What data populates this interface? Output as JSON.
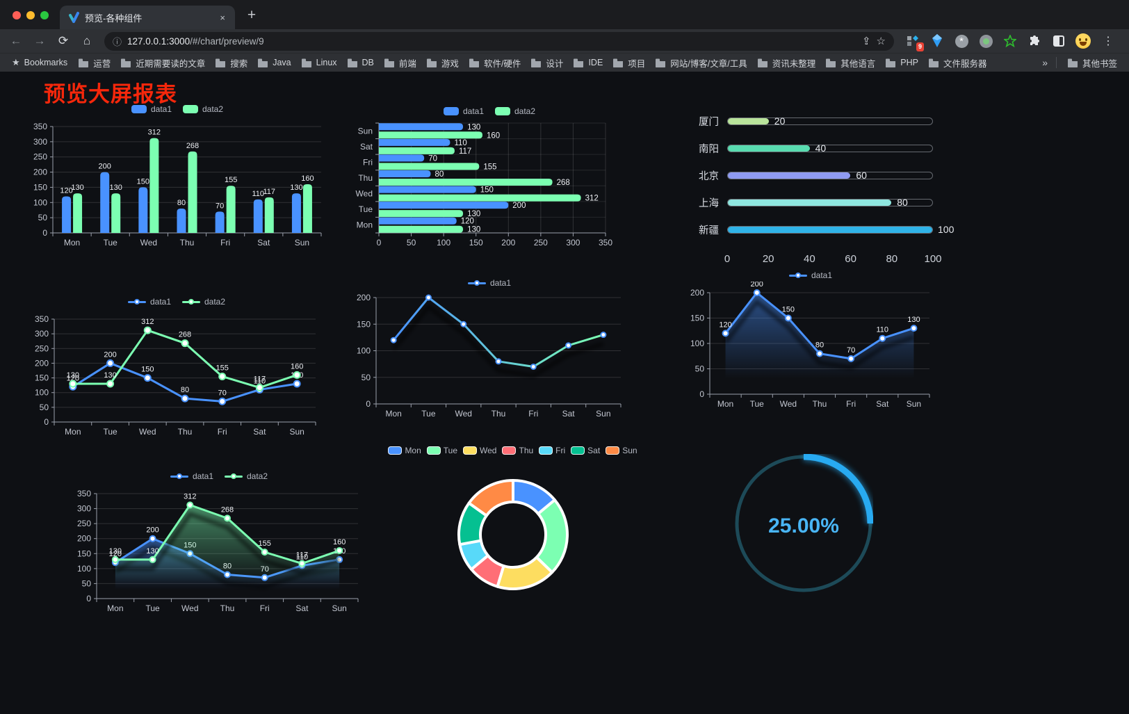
{
  "browser": {
    "tab_title": "预览-各种组件",
    "close_glyph": "×",
    "new_tab_glyph": "+",
    "nav": {
      "back": "←",
      "forward": "→",
      "reload": "⟳",
      "home": "⌂"
    },
    "url": {
      "info_glyph": "ⓘ",
      "host": "127.0.0.1:3000",
      "path": "/#/chart/preview/9"
    },
    "share_glyph": "⇪",
    "star_glyph": "☆",
    "extension_badge": "9",
    "menu_glyph": "⋮",
    "bookmarks": {
      "root_label": "Bookmarks",
      "folders": [
        "运营",
        "近期需要读的文章",
        "搜索",
        "Java",
        "Linux",
        "DB",
        "前端",
        "游戏",
        "软件/硬件",
        "设计",
        "IDE",
        "项目",
        "网站/博客/文章/工具",
        "资讯未整理",
        "其他语言",
        "PHP",
        "文件服务器"
      ],
      "overflow_glyph": "»",
      "other_label": "其他书签"
    }
  },
  "page": {
    "title": "预览大屏报表"
  },
  "chart_data": [
    {
      "id": "bar-vertical",
      "type": "bar",
      "categories": [
        "Mon",
        "Tue",
        "Wed",
        "Thu",
        "Fri",
        "Sat",
        "Sun"
      ],
      "series": [
        {
          "name": "data1",
          "color": "#4992ff",
          "values": [
            120,
            200,
            150,
            80,
            70,
            110,
            130
          ]
        },
        {
          "name": "data2",
          "color": "#7cffb2",
          "values": [
            130,
            130,
            312,
            268,
            155,
            117,
            160
          ]
        }
      ],
      "ylim": [
        0,
        350
      ],
      "ytick_step": 50,
      "legend_position": "top",
      "grid": true,
      "labels": true
    },
    {
      "id": "bar-horizontal",
      "type": "bar-horizontal",
      "categories": [
        "Mon",
        "Tue",
        "Wed",
        "Thu",
        "Fri",
        "Sat",
        "Sun"
      ],
      "series": [
        {
          "name": "data1",
          "color": "#4992ff",
          "values": [
            120,
            200,
            150,
            80,
            70,
            110,
            130
          ]
        },
        {
          "name": "data2",
          "color": "#7cffb2",
          "values": [
            130,
            130,
            312,
            268,
            155,
            117,
            160
          ]
        }
      ],
      "xlim": [
        0,
        350
      ],
      "xtick_step": 50,
      "legend_position": "top",
      "grid": true,
      "labels": true
    },
    {
      "id": "city-progress",
      "type": "progress-bars",
      "max": 100,
      "items": [
        {
          "label": "厦门",
          "value": 20,
          "color": "#b9e49b"
        },
        {
          "label": "南阳",
          "value": 40,
          "color": "#59dcb0"
        },
        {
          "label": "北京",
          "value": 60,
          "color": "#8f9bf1"
        },
        {
          "label": "上海",
          "value": 80,
          "color": "#8fe7e0"
        },
        {
          "label": "新疆",
          "value": 100,
          "color": "#2fb3e8"
        }
      ],
      "axis_ticks": [
        0,
        20,
        40,
        60,
        80,
        100
      ]
    },
    {
      "id": "line-dual",
      "type": "line",
      "categories": [
        "Mon",
        "Tue",
        "Wed",
        "Thu",
        "Fri",
        "Sat",
        "Sun"
      ],
      "series": [
        {
          "name": "data1",
          "color": "#4992ff",
          "values": [
            120,
            200,
            150,
            80,
            70,
            110,
            130
          ]
        },
        {
          "name": "data2",
          "color": "#7cffb2",
          "values": [
            130,
            130,
            312,
            268,
            155,
            117,
            160
          ]
        }
      ],
      "ylim": [
        0,
        350
      ],
      "ytick_step": 50,
      "labels": true,
      "marker_r": 4.5
    },
    {
      "id": "line-gradient",
      "type": "line",
      "categories": [
        "Mon",
        "Tue",
        "Wed",
        "Thu",
        "Fri",
        "Sat",
        "Sun"
      ],
      "series": [
        {
          "name": "data1",
          "color": "#4992ff",
          "gradient_end": "#7cffb2",
          "values": [
            120,
            200,
            150,
            80,
            70,
            110,
            130
          ]
        }
      ],
      "ylim": [
        0,
        200
      ],
      "ytick_step": 50,
      "labels": false,
      "shadow": true,
      "marker_r": 3.5
    },
    {
      "id": "area-single",
      "type": "area",
      "categories": [
        "Mon",
        "Tue",
        "Wed",
        "Thu",
        "Fri",
        "Sat",
        "Sun"
      ],
      "series": [
        {
          "name": "data1",
          "color": "#4992ff",
          "values": [
            120,
            200,
            150,
            80,
            70,
            110,
            130
          ]
        }
      ],
      "ylim": [
        0,
        200
      ],
      "ytick_step": 50,
      "labels": true,
      "shadow": true,
      "marker_r": 4
    },
    {
      "id": "area-dual",
      "type": "area",
      "categories": [
        "Mon",
        "Tue",
        "Wed",
        "Thu",
        "Fri",
        "Sat",
        "Sun"
      ],
      "series": [
        {
          "name": "data1",
          "color": "#4992ff",
          "values": [
            120,
            200,
            150,
            80,
            70,
            110,
            130
          ]
        },
        {
          "name": "data2",
          "color": "#7cffb2",
          "values": [
            130,
            130,
            312,
            268,
            155,
            117,
            160
          ]
        }
      ],
      "ylim": [
        0,
        350
      ],
      "ytick_step": 50,
      "labels": true,
      "shadow": true,
      "marker_r": 4
    },
    {
      "id": "week-donut",
      "type": "pie",
      "categories": [
        "Mon",
        "Tue",
        "Wed",
        "Thu",
        "Fri",
        "Sat",
        "Sun"
      ],
      "values": [
        120,
        200,
        150,
        80,
        70,
        110,
        130
      ],
      "colors": [
        "#4992ff",
        "#7cffb2",
        "#fddd60",
        "#ff6e76",
        "#58d9f9",
        "#05c091",
        "#ff8a45"
      ],
      "border_color": "#ffffff",
      "outer_radius": 78,
      "inner_radius": 47
    },
    {
      "id": "percent-gauge",
      "type": "gauge",
      "value_label": "25.00%",
      "percent": 25,
      "color": "#28aaf1",
      "track_color": "#1d4a58",
      "text_color": "#49b5f5"
    }
  ]
}
